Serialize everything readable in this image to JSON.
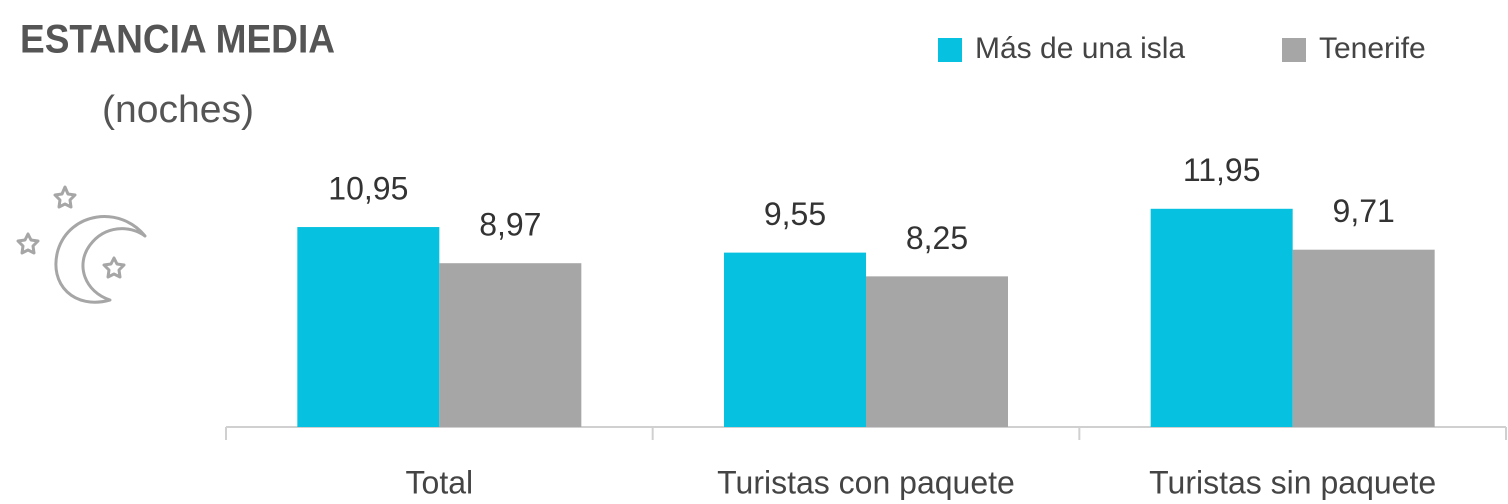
{
  "chart_data": {
    "type": "bar",
    "title": "ESTANCIA MEDIA",
    "subtitle": "(noches)",
    "categories": [
      "Total",
      "Turistas con paquete",
      "Turistas sin paquete"
    ],
    "series": [
      {
        "name": "Más de una isla",
        "color": "#06c1df",
        "values": [
          10.95,
          9.55,
          11.95
        ],
        "value_labels": [
          "10,95",
          "9,55",
          "11,95"
        ]
      },
      {
        "name": "Tenerife",
        "color": "#a6a6a6",
        "values": [
          8.97,
          8.25,
          9.71
        ],
        "value_labels": [
          "8,97",
          "8,25",
          "9,71"
        ]
      }
    ],
    "legend": "top-right"
  }
}
